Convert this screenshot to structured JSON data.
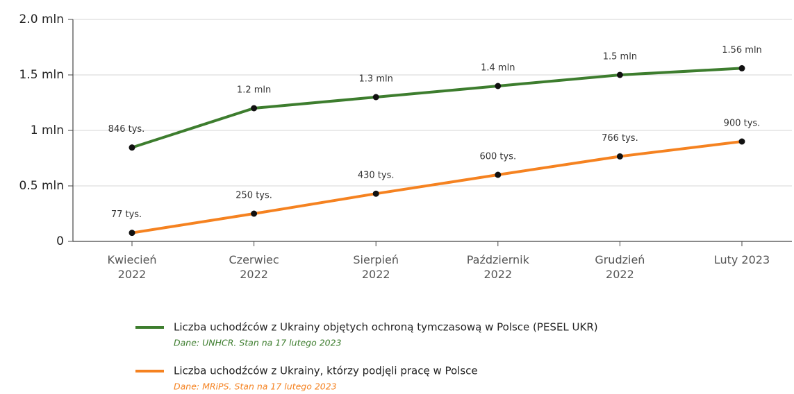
{
  "chart_data": {
    "type": "line",
    "categories": [
      "Kwiecień 2022",
      "Czerwiec 2022",
      "Sierpień 2022",
      "Październik 2022",
      "Grudzień 2022",
      "Luty 2023"
    ],
    "series": [
      {
        "name": "Liczba uchodźców z Ukrainy objętych ochroną tymczasową w Polsce (PESEL UKR)",
        "note": "Dane: UNHCR. Stan na 17 lutego 2023",
        "color": "#3d7d2e",
        "values": [
          0.846,
          1.2,
          1.3,
          1.4,
          1.5,
          1.56
        ],
        "value_labels": [
          "846 tys.",
          "1.2 mln",
          "1.3 mln",
          "1.4 mln",
          "1.5 mln",
          "1.56 mln"
        ]
      },
      {
        "name": "Liczba uchodźców z Ukrainy, którzy podjęli pracę w Polsce",
        "note": "Dane: MRiPS. Stan na 17 lutego 2023",
        "color": "#f58220",
        "values": [
          0.077,
          0.25,
          0.43,
          0.6,
          0.766,
          0.9
        ],
        "value_labels": [
          "77 tys.",
          "250 tys.",
          "430 tys.",
          "600 tys.",
          "766 tys.",
          "900 tys."
        ]
      }
    ],
    "ylim": [
      0,
      2
    ],
    "yticks": [
      0,
      {
        "value": 0.5,
        "label": "0.5 mln"
      },
      {
        "value": 1,
        "label": "1 mln"
      },
      {
        "value": 1.5,
        "label": "1.5 mln"
      },
      {
        "value": 2,
        "label": "2.0 mln"
      }
    ],
    "grid": true
  }
}
